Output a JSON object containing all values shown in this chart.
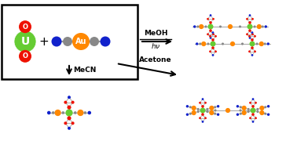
{
  "bg_color": "#ffffff",
  "box_color": "#000000",
  "U_color": "#66cc33",
  "O_color": "#ee1100",
  "Au_color": "#ff8800",
  "gray_color": "#888888",
  "blue_color": "#1122cc",
  "green_color": "#66cc33",
  "orange_color": "#ff8800",
  "red_color": "#ee1100",
  "bond_color": "#aaaaaa",
  "label_U": "U",
  "label_Au": "Au",
  "label_O": "O"
}
